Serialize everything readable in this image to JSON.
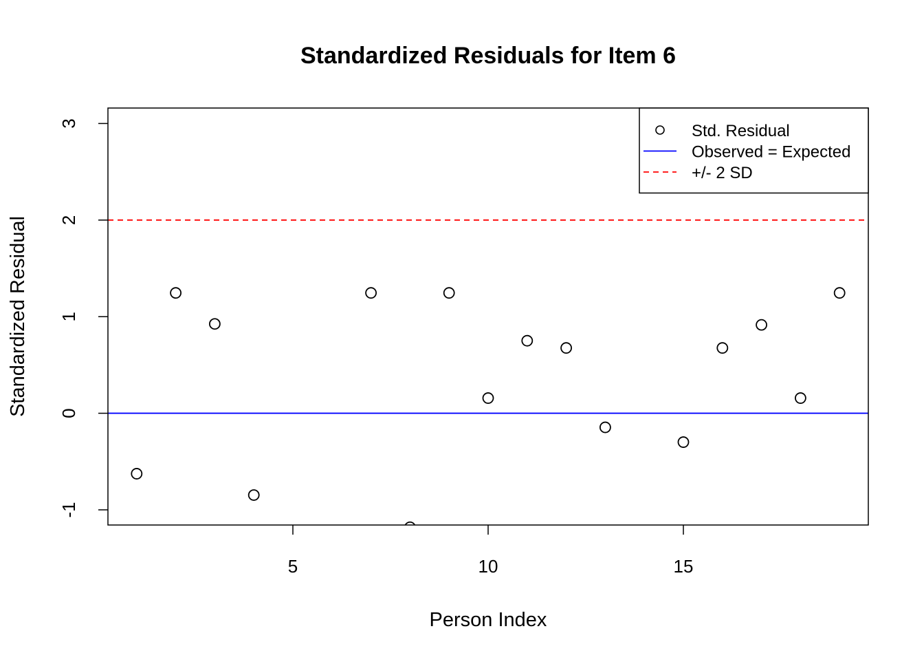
{
  "chart_data": {
    "type": "scatter",
    "title": "Standardized Residuals for Item 6",
    "x_label": "Person Index",
    "y_label": "Standardized Residual",
    "x": [
      1,
      2,
      3,
      4,
      5,
      6,
      7,
      8,
      9,
      10,
      11,
      12,
      13,
      14,
      15,
      16,
      17,
      18,
      19
    ],
    "series": [
      {
        "name": "Std. Residual",
        "color": "#000000",
        "values": [
          -0.626,
          1.246,
          0.925,
          -0.847,
          null,
          null,
          1.246,
          -1.18,
          1.246,
          0.157,
          0.751,
          0.676,
          -0.146,
          null,
          -0.299,
          0.676,
          0.915,
          0.157,
          1.246
        ]
      }
    ],
    "reference_lines": [
      {
        "name": "Observed = Expected",
        "color": "#0000ff",
        "value": 0,
        "dashed": false
      },
      {
        "name": "+/- 2 SD",
        "color": "#ff0000",
        "value": 2,
        "dashed": true
      }
    ],
    "xlim": [
      0.264,
      19.736
    ],
    "ylim": [
      -1.157,
      3.16
    ],
    "xticks": [
      5,
      10,
      15
    ],
    "yticks": [
      -1,
      0,
      1,
      2,
      3
    ],
    "legend_position": "top-right"
  }
}
